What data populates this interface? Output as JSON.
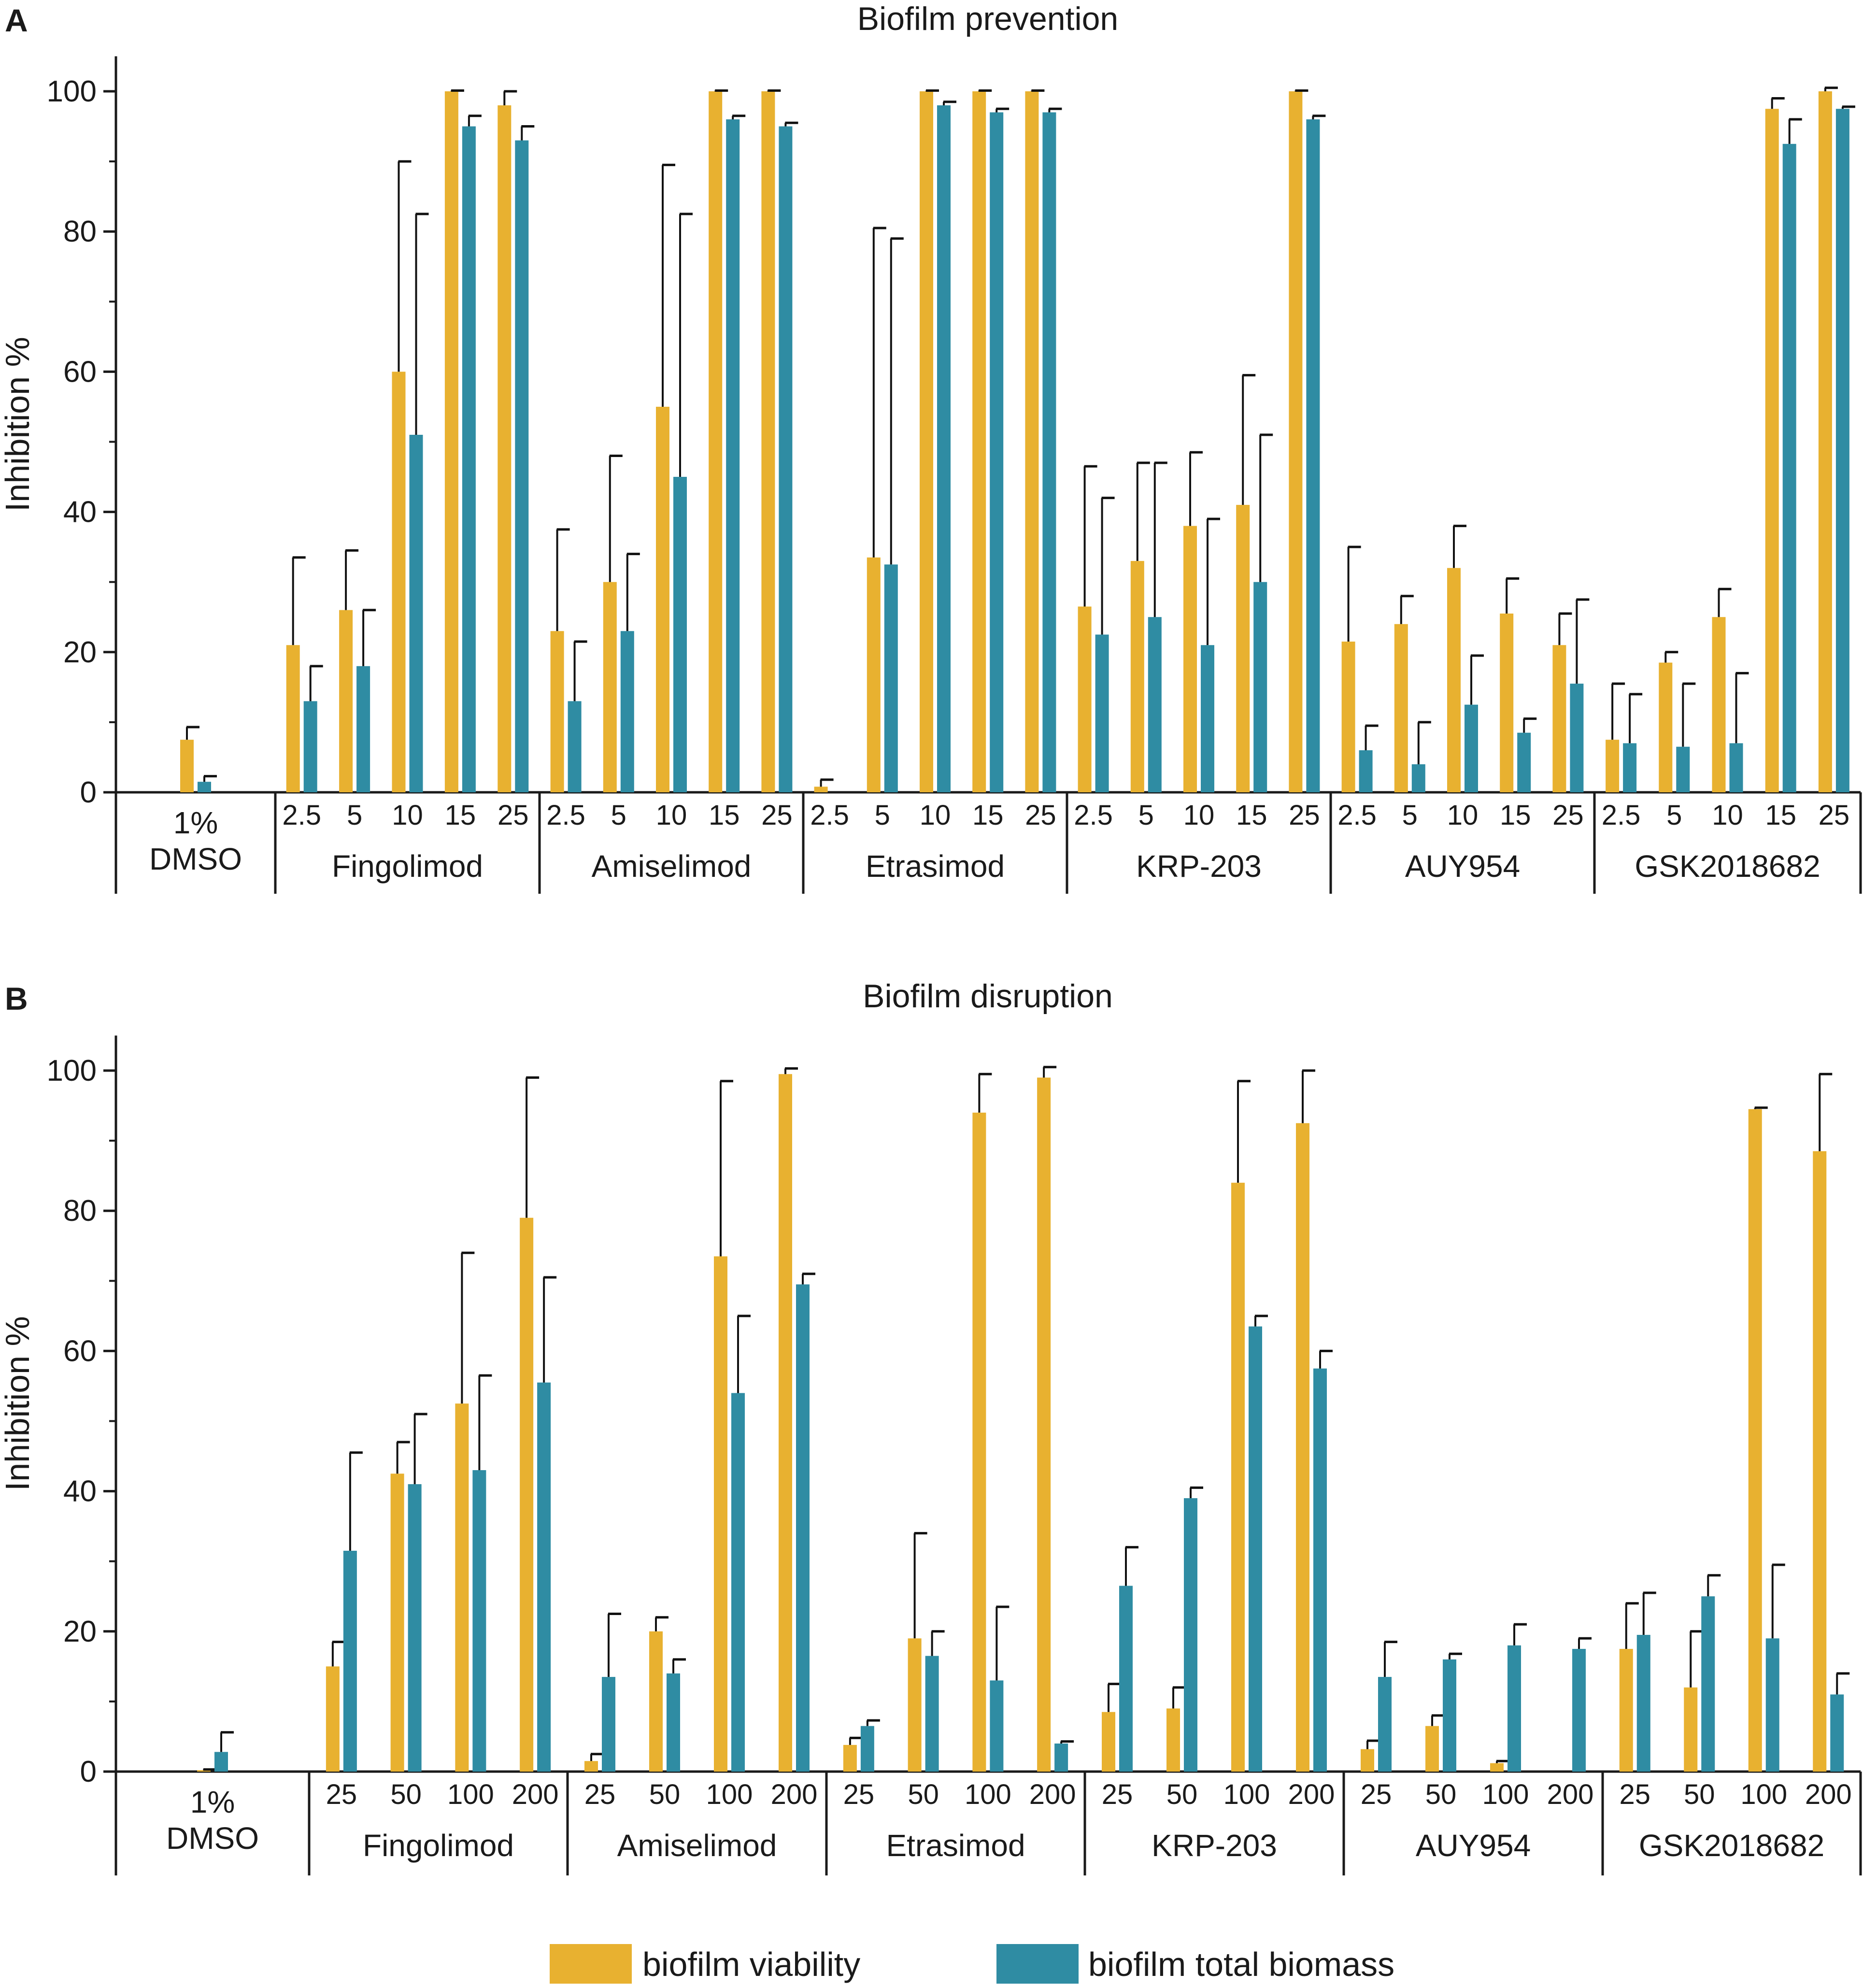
{
  "figure": {
    "legend": [
      {
        "label": "biofilm viability",
        "color": "#E8B130"
      },
      {
        "label": "biofilm total biomass",
        "color": "#2F8CA3"
      }
    ]
  },
  "chart_data": [
    {
      "type": "bar",
      "panel": "A",
      "title": "Biofilm prevention",
      "ylabel": "Inhibition %",
      "xlabel": "",
      "ylim": [
        0,
        105
      ],
      "yticks": [
        0,
        20,
        40,
        60,
        80,
        100
      ],
      "grid": false,
      "control": {
        "label_lines": [
          "1%",
          "DMSO"
        ],
        "viability": 7.5,
        "viability_err": 1.8,
        "biomass": 1.5,
        "biomass_err": 0.8
      },
      "groups": [
        {
          "name": "Fingolimod",
          "concentrations": [
            "2.5",
            "5",
            "10",
            "15",
            "25"
          ],
          "viability": [
            21,
            26,
            60,
            100,
            98
          ],
          "viability_err": [
            12.5,
            8.5,
            30,
            0.1,
            2
          ],
          "biomass": [
            13,
            18,
            51,
            95,
            93
          ],
          "biomass_err": [
            5,
            8,
            31.5,
            1.5,
            2
          ]
        },
        {
          "name": "Amiselimod",
          "concentrations": [
            "2.5",
            "5",
            "10",
            "15",
            "25"
          ],
          "viability": [
            23,
            30,
            55,
            100,
            100
          ],
          "viability_err": [
            14.5,
            18,
            34.5,
            0.1,
            0.1
          ],
          "biomass": [
            13,
            23,
            45,
            96,
            95
          ],
          "biomass_err": [
            8.5,
            11,
            37.5,
            0.5,
            0.5
          ]
        },
        {
          "name": "Etrasimod",
          "concentrations": [
            "2.5",
            "5",
            "10",
            "15",
            "25"
          ],
          "viability": [
            0.8,
            33.5,
            100,
            100,
            100
          ],
          "viability_err": [
            1,
            47,
            0.1,
            0.1,
            0.1
          ],
          "biomass": [
            null,
            32.5,
            98,
            97,
            97
          ],
          "biomass_err": [
            null,
            46.5,
            0.5,
            0.5,
            0.5
          ]
        },
        {
          "name": "KRP-203",
          "concentrations": [
            "2.5",
            "5",
            "10",
            "15",
            "25"
          ],
          "viability": [
            26.5,
            33,
            38,
            41,
            100
          ],
          "viability_err": [
            20,
            14,
            10.5,
            18.5,
            0.1
          ],
          "biomass": [
            22.5,
            25,
            21,
            30,
            96
          ],
          "biomass_err": [
            19.5,
            22,
            18,
            21,
            0.5
          ]
        },
        {
          "name": "AUY954",
          "concentrations": [
            "2.5",
            "5",
            "10",
            "15",
            "25"
          ],
          "viability": [
            21.5,
            24,
            32,
            25.5,
            21
          ],
          "viability_err": [
            13.5,
            4,
            6,
            5,
            4.5
          ],
          "biomass": [
            6,
            4,
            12.5,
            8.5,
            15.5
          ],
          "biomass_err": [
            3.5,
            6,
            7,
            2,
            12
          ]
        },
        {
          "name": "GSK2018682",
          "concentrations": [
            "2.5",
            "5",
            "10",
            "15",
            "25"
          ],
          "viability": [
            7.5,
            18.5,
            25,
            97.5,
            100
          ],
          "viability_err": [
            8,
            1.5,
            4,
            1.5,
            0.5
          ],
          "biomass": [
            7,
            6.5,
            7,
            92.5,
            97.5
          ],
          "biomass_err": [
            7,
            9,
            10,
            3.5,
            0.3
          ]
        }
      ]
    },
    {
      "type": "bar",
      "panel": "B",
      "title": "Biofilm disruption",
      "ylabel": "Inhibition %",
      "xlabel": "",
      "ylim": [
        0,
        105
      ],
      "yticks": [
        0,
        20,
        40,
        60,
        80,
        100
      ],
      "grid": false,
      "control": {
        "label_lines": [
          "1%",
          "DMSO"
        ],
        "viability": 0.2,
        "viability_err": 0.1,
        "biomass": 2.8,
        "biomass_err": 2.8
      },
      "groups": [
        {
          "name": "Fingolimod",
          "concentrations": [
            "25",
            "50",
            "100",
            "200"
          ],
          "viability": [
            15,
            42.5,
            52.5,
            79
          ],
          "viability_err": [
            3.5,
            4.5,
            21.5,
            20
          ],
          "biomass": [
            31.5,
            41,
            43,
            55.5
          ],
          "biomass_err": [
            14,
            10,
            13.5,
            15
          ]
        },
        {
          "name": "Amiselimod",
          "concentrations": [
            "25",
            "50",
            "100",
            "200"
          ],
          "viability": [
            1.5,
            20,
            73.5,
            99.5
          ],
          "viability_err": [
            1,
            2,
            25,
            0.8
          ],
          "biomass": [
            13.5,
            14,
            54,
            69.5
          ],
          "biomass_err": [
            9,
            2,
            11,
            1.5
          ]
        },
        {
          "name": "Etrasimod",
          "concentrations": [
            "25",
            "50",
            "100",
            "200"
          ],
          "viability": [
            3.8,
            19,
            94,
            99
          ],
          "viability_err": [
            1,
            15,
            5.5,
            1.5
          ],
          "biomass": [
            6.5,
            16.5,
            13,
            4
          ],
          "biomass_err": [
            0.8,
            3.5,
            10.5,
            0.3
          ]
        },
        {
          "name": "KRP-203",
          "concentrations": [
            "25",
            "50",
            "100",
            "200"
          ],
          "viability": [
            8.5,
            9,
            84,
            92.5
          ],
          "viability_err": [
            4,
            3,
            14.5,
            7.5
          ],
          "biomass": [
            26.5,
            39,
            63.5,
            57.5
          ],
          "biomass_err": [
            5.5,
            1.5,
            1.5,
            2.5
          ]
        },
        {
          "name": "AUY954",
          "concentrations": [
            "25",
            "50",
            "100",
            "200"
          ],
          "viability": [
            3.2,
            6.5,
            1.2,
            null
          ],
          "viability_err": [
            1.2,
            1.5,
            0.3,
            null
          ],
          "biomass": [
            13.5,
            16,
            18,
            17.5
          ],
          "biomass_err": [
            5,
            0.8,
            3,
            1.5
          ]
        },
        {
          "name": "GSK2018682",
          "concentrations": [
            "25",
            "50",
            "100",
            "200"
          ],
          "viability": [
            17.5,
            12,
            94.5,
            88.5
          ],
          "viability_err": [
            6.5,
            8,
            0.2,
            11
          ],
          "biomass": [
            19.5,
            25,
            19,
            11
          ],
          "biomass_err": [
            6,
            3,
            10.5,
            3
          ]
        }
      ]
    }
  ]
}
